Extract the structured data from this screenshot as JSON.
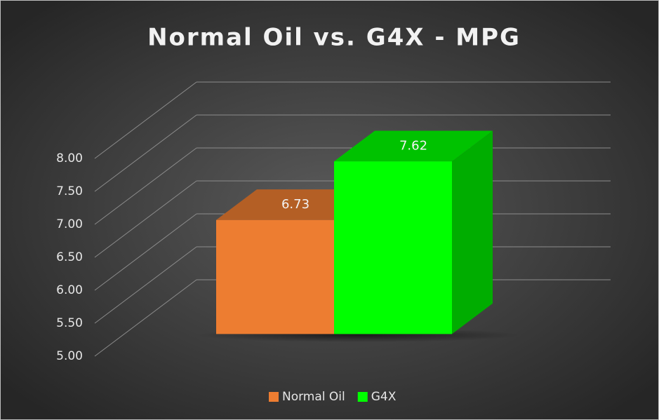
{
  "chart_data": {
    "type": "bar3d",
    "title": "Normal Oil vs. G4X - MPG",
    "categories": [
      null
    ],
    "series": [
      {
        "name": "Normal Oil",
        "color": "#ed7d31",
        "values": [
          6.73
        ]
      },
      {
        "name": "G4X",
        "color": "#00ff00",
        "values": [
          7.62
        ]
      }
    ],
    "ylim": [
      5,
      8
    ],
    "yticks": [
      {
        "value": 5,
        "label": "5.00"
      },
      {
        "value": 5.5,
        "label": "5.50"
      },
      {
        "value": 6,
        "label": "6.00"
      },
      {
        "value": 6.5,
        "label": "6.50"
      },
      {
        "value": 7,
        "label": "7.00"
      },
      {
        "value": 7.5,
        "label": "7.50"
      },
      {
        "value": 8,
        "label": "8.00"
      }
    ],
    "grid": true,
    "legend": "bottom"
  }
}
